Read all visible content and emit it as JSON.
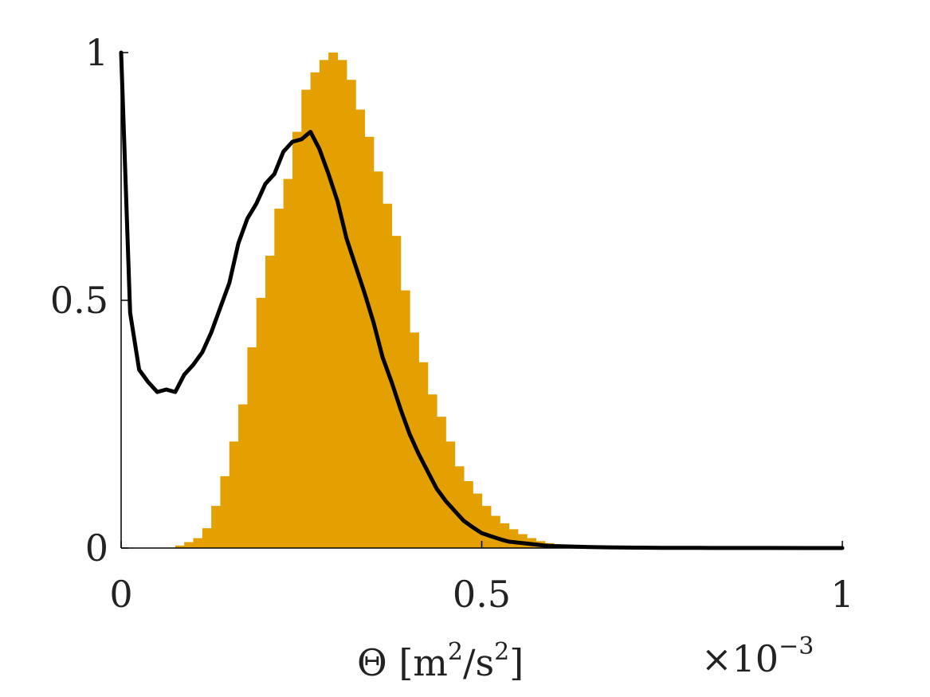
{
  "chart_data": {
    "type": "bar",
    "title": "",
    "xlabel": "Θ [m²/s²]",
    "xlabel_parts": {
      "main": "Θ [m",
      "sup1": "2",
      "mid": "/s",
      "sup2": "2",
      "end": "]"
    },
    "x_multiplier": {
      "base": "×10",
      "exponent": "−3"
    },
    "ylabel": "",
    "xlim": [
      0,
      1
    ],
    "ylim": [
      0,
      1
    ],
    "x_ticks": [
      0,
      0.5,
      1
    ],
    "x_tick_labels": [
      "0",
      "0.5",
      "1"
    ],
    "y_ticks": [
      0,
      0.5,
      1
    ],
    "y_tick_labels": [
      "0",
      "0.5",
      "1"
    ],
    "grid": false,
    "histogram": {
      "color": "#E3A000",
      "bin_width": 0.0125,
      "bin_starts": [
        0.075,
        0.0875,
        0.1,
        0.1125,
        0.125,
        0.1375,
        0.15,
        0.1625,
        0.175,
        0.1875,
        0.2,
        0.2125,
        0.225,
        0.2375,
        0.25,
        0.2625,
        0.275,
        0.2875,
        0.3,
        0.3125,
        0.325,
        0.3375,
        0.35,
        0.3625,
        0.375,
        0.3875,
        0.4,
        0.4125,
        0.425,
        0.4375,
        0.45,
        0.4625,
        0.475,
        0.4875,
        0.5,
        0.5125,
        0.525,
        0.5375,
        0.55,
        0.5625,
        0.575,
        0.5875,
        0.6,
        0.6125,
        0.625,
        0.6375,
        0.65
      ],
      "values": [
        0.005,
        0.012,
        0.02,
        0.04,
        0.085,
        0.145,
        0.215,
        0.29,
        0.405,
        0.505,
        0.59,
        0.685,
        0.745,
        0.84,
        0.925,
        0.96,
        0.985,
        1.0,
        0.985,
        0.945,
        0.885,
        0.83,
        0.76,
        0.695,
        0.63,
        0.52,
        0.435,
        0.375,
        0.31,
        0.265,
        0.215,
        0.165,
        0.135,
        0.11,
        0.085,
        0.065,
        0.05,
        0.038,
        0.028,
        0.02,
        0.014,
        0.01,
        0.006,
        0.004,
        0.002,
        0.001,
        0.0
      ]
    },
    "series": [
      {
        "color": "#000000",
        "x": [
          0,
          0.0125,
          0.025,
          0.0375,
          0.05,
          0.0625,
          0.075,
          0.0875,
          0.1,
          0.1125,
          0.125,
          0.1375,
          0.15,
          0.1625,
          0.175,
          0.1875,
          0.2,
          0.2125,
          0.225,
          0.2375,
          0.25,
          0.2625,
          0.275,
          0.2875,
          0.3,
          0.3125,
          0.325,
          0.3375,
          0.35,
          0.3625,
          0.375,
          0.3875,
          0.4,
          0.4125,
          0.425,
          0.4375,
          0.45,
          0.4625,
          0.475,
          0.4875,
          0.5,
          0.5125,
          0.525,
          0.5375,
          0.55,
          0.5625,
          0.575,
          0.5875,
          0.6,
          0.625,
          0.65,
          0.7,
          0.75,
          0.8,
          0.85,
          0.9,
          0.95,
          1.0
        ],
        "y": [
          1.0,
          0.475,
          0.36,
          0.335,
          0.315,
          0.32,
          0.315,
          0.35,
          0.37,
          0.395,
          0.435,
          0.485,
          0.535,
          0.615,
          0.665,
          0.695,
          0.735,
          0.755,
          0.8,
          0.82,
          0.825,
          0.84,
          0.805,
          0.755,
          0.7,
          0.625,
          0.57,
          0.515,
          0.455,
          0.385,
          0.335,
          0.28,
          0.23,
          0.19,
          0.155,
          0.12,
          0.095,
          0.075,
          0.055,
          0.042,
          0.03,
          0.024,
          0.018,
          0.013,
          0.011,
          0.009,
          0.007,
          0.005,
          0.004,
          0.003,
          0.002,
          0.001,
          0.0005,
          0.0003,
          0.0002,
          0.0001,
          0.0,
          0.0
        ]
      }
    ]
  }
}
